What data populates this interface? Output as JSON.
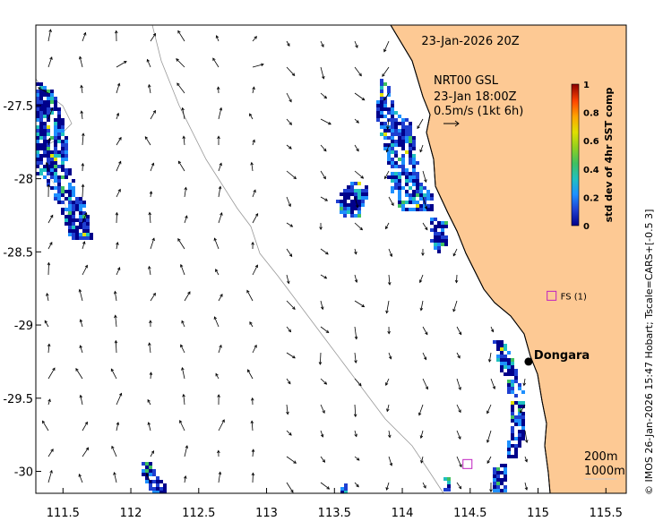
{
  "title": "23-Jan-2026 20Z",
  "current_overlay": {
    "label": "NRT00 GSL",
    "time": "23-Jan 18:00Z",
    "scale": "0.5m/s (1kt 6h)"
  },
  "colorbar": {
    "label": "std dev of 4hr SST comp",
    "ticks": [
      "0",
      "0.2",
      "0.4",
      "0.6",
      "0.8",
      "1"
    ],
    "colors": [
      "#00008b",
      "#1f3fd0",
      "#1e90ff",
      "#20c0c0",
      "#40c060",
      "#90d020",
      "#e0e000",
      "#ffa500",
      "#ff4500",
      "#8b0000"
    ]
  },
  "map": {
    "land_color": "#fdc994",
    "lon_ticks": [
      "111.5",
      "112",
      "112.5",
      "113",
      "113.5",
      "114",
      "114.5",
      "115",
      "115.5"
    ],
    "lat_ticks": [
      "-27.5",
      "-28",
      "-28.5",
      "-29",
      "-29.5",
      "-30"
    ],
    "places": [
      {
        "name": "Dongara",
        "lon": 114.93,
        "lat": -29.25,
        "marker": "filled-circle"
      }
    ],
    "stations": [
      {
        "name": "FS (1)",
        "lon": 115.1,
        "lat": -28.8
      },
      {
        "name": "",
        "lon": 114.48,
        "lat": -29.95
      }
    ],
    "depth_contours": [
      "200m",
      "1000m"
    ]
  },
  "credit": "© IMOS 26-Jan-2026 15:47 Hobart; Tscale=CARS+[-0.5 3]"
}
